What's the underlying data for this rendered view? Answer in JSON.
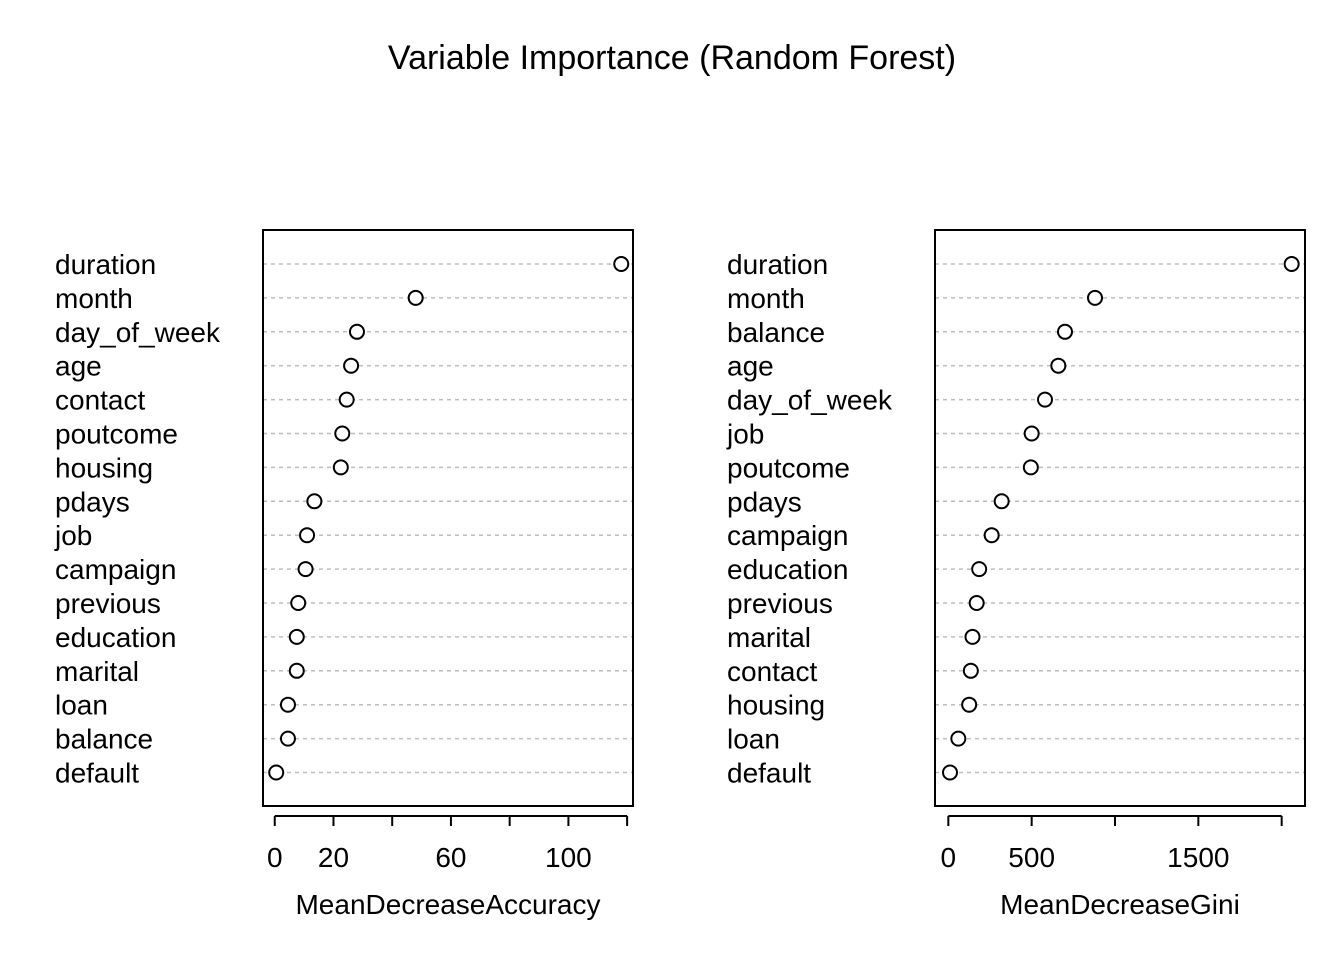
{
  "title": "Variable Importance (Random Forest)",
  "chart_data": [
    {
      "type": "scatter",
      "subtype": "dotchart",
      "xlabel": "MeanDecreaseAccuracy",
      "xlim": [
        -4,
        122
      ],
      "ticks": [
        0,
        20,
        40,
        60,
        80,
        100,
        120
      ],
      "tick_labels": [
        "0",
        "20",
        "",
        "60",
        "",
        "100",
        ""
      ],
      "categories": [
        "duration",
        "month",
        "day_of_week",
        "age",
        "contact",
        "poutcome",
        "housing",
        "pdays",
        "job",
        "campaign",
        "previous",
        "education",
        "marital",
        "loan",
        "balance",
        "default"
      ],
      "values": [
        118,
        48,
        28,
        26,
        24.5,
        23,
        22.5,
        13.5,
        11,
        10.5,
        8,
        7.5,
        7.5,
        4.5,
        4.5,
        0.5
      ],
      "grid": true,
      "point_style": "open-circle"
    },
    {
      "type": "scatter",
      "subtype": "dotchart",
      "xlabel": "MeanDecreaseGini",
      "xlim": [
        -80,
        2140
      ],
      "ticks": [
        0,
        500,
        1000,
        1500,
        2000
      ],
      "tick_labels": [
        "0",
        "500",
        "",
        "1500",
        ""
      ],
      "categories": [
        "duration",
        "month",
        "balance",
        "age",
        "day_of_week",
        "job",
        "poutcome",
        "pdays",
        "campaign",
        "education",
        "previous",
        "marital",
        "contact",
        "housing",
        "loan",
        "default"
      ],
      "values": [
        2060,
        880,
        700,
        660,
        580,
        500,
        495,
        320,
        260,
        185,
        170,
        145,
        135,
        125,
        60,
        10
      ],
      "grid": true,
      "point_style": "open-circle"
    }
  ]
}
